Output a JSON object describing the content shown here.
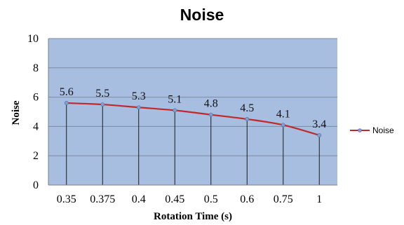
{
  "chart_data": {
    "type": "line",
    "title": "Noise",
    "xlabel": "Rotation Time (s)",
    "ylabel": "Noise",
    "categories": [
      "0.35",
      "0.375",
      "0.4",
      "0.45",
      "0.5",
      "0.6",
      "0.75",
      "1"
    ],
    "series": [
      {
        "name": "Noise",
        "values": [
          5.6,
          5.5,
          5.3,
          5.1,
          4.8,
          4.5,
          4.1,
          3.4
        ],
        "data_labels": [
          "5.6",
          "5.5",
          "5.3",
          "5.1",
          "4.8",
          "4.5",
          "4.1",
          "3.4"
        ],
        "color": "#c0282a",
        "marker_color": "#7f9fcf"
      }
    ],
    "ylim": [
      0,
      10
    ],
    "yticks": [
      "0",
      "2",
      "4",
      "6",
      "8",
      "10"
    ],
    "grid": true,
    "drop_lines": true,
    "legend_position": "right",
    "plot_background": "#a8bee0",
    "gridline_color": "#7c8aa2"
  }
}
